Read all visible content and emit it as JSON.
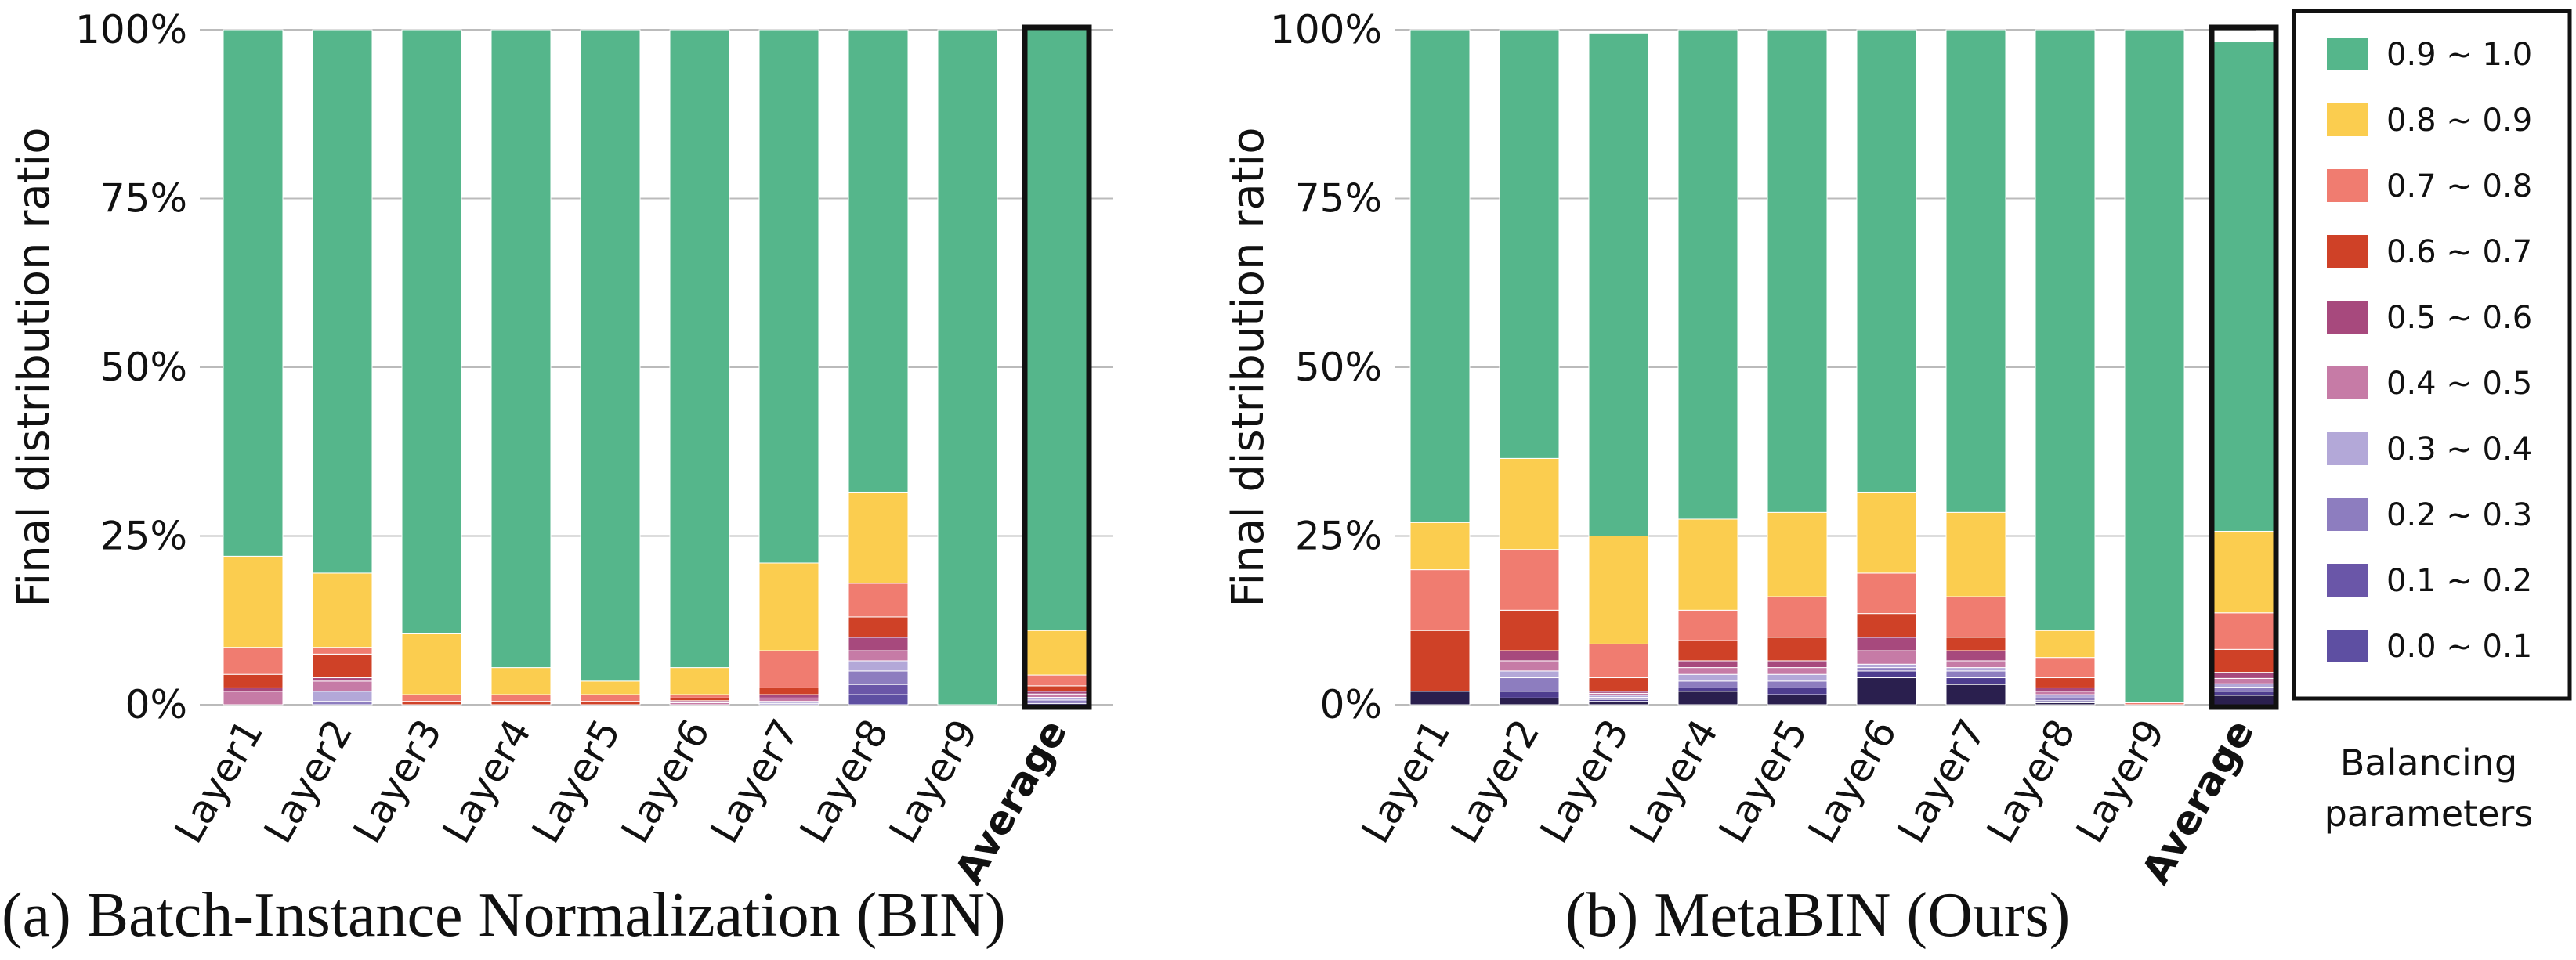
{
  "chart_data": [
    {
      "type": "bar",
      "stacked": true,
      "title": "(a) Batch-Instance Normalization  (BIN)",
      "ylabel": "Final distribution ratio",
      "ylim": [
        0,
        100
      ],
      "yticks": [
        "0%",
        "25%",
        "50%",
        "75%",
        "100%"
      ],
      "grid": true,
      "categories": [
        "Layer1",
        "Layer2",
        "Layer3",
        "Layer4",
        "Layer5",
        "Layer6",
        "Layer7",
        "Layer8",
        "Layer9",
        "Average"
      ],
      "highlighted_category": "Average",
      "series": [
        {
          "name": "0.0 ~ 0.1",
          "color": "#5e4fa2",
          "values": [
            0,
            0,
            0,
            0,
            0,
            0,
            0,
            1.5,
            0,
            0.2
          ]
        },
        {
          "name": "0.1 ~ 0.2",
          "color": "#6a56a8",
          "values": [
            0,
            0,
            0,
            0,
            0,
            0,
            0,
            1.5,
            0,
            0.2
          ]
        },
        {
          "name": "0.2 ~ 0.3",
          "color": "#8d7dbf",
          "values": [
            0,
            0.5,
            0,
            0,
            0,
            0,
            0.2,
            2,
            0,
            0.3
          ]
        },
        {
          "name": "0.3 ~ 0.4",
          "color": "#b3a8d8",
          "values": [
            0,
            1.5,
            0,
            0,
            0,
            0,
            0.3,
            1.5,
            0,
            0.4
          ]
        },
        {
          "name": "0.4 ~ 0.5",
          "color": "#c67ba6",
          "values": [
            2,
            1.5,
            0,
            0,
            0,
            0.3,
            0.5,
            1.5,
            0,
            0.5
          ]
        },
        {
          "name": "0.5 ~ 0.6",
          "color": "#a7497d",
          "values": [
            0.5,
            0.5,
            0,
            0,
            0,
            0.3,
            0.5,
            2,
            0,
            0.4
          ]
        },
        {
          "name": "0.6 ~ 0.7",
          "color": "#cf4127",
          "values": [
            2,
            3.5,
            0.5,
            0.5,
            0.5,
            0.4,
            1,
            3,
            0,
            0.8
          ]
        },
        {
          "name": "0.7 ~ 0.8",
          "color": "#f07c70",
          "values": [
            4,
            1,
            1,
            1,
            1,
            0.5,
            5.5,
            5,
            0,
            1.6
          ]
        },
        {
          "name": "0.8 ~ 0.9",
          "color": "#fbcd4f",
          "values": [
            13.5,
            11,
            9,
            4,
            2,
            4,
            13,
            13.5,
            0,
            6.6
          ]
        },
        {
          "name": "0.9 ~ 1.0",
          "color": "#55b68b",
          "values": [
            78,
            80.5,
            89.5,
            94.5,
            96.5,
            94.5,
            79,
            68.5,
            100,
            89
          ]
        }
      ]
    },
    {
      "type": "bar",
      "stacked": true,
      "title": "(b) MetaBIN (Ours)",
      "ylabel": "Final distribution ratio",
      "ylim": [
        0,
        100
      ],
      "yticks": [
        "0%",
        "25%",
        "50%",
        "75%",
        "100%"
      ],
      "grid": true,
      "categories": [
        "Layer1",
        "Layer2",
        "Layer3",
        "Layer4",
        "Layer5",
        "Layer6",
        "Layer7",
        "Layer8",
        "Layer9",
        "Average"
      ],
      "highlighted_category": "Average",
      "series": [
        {
          "name": "0.0 ~ 0.1",
          "color": "#2a1f4e",
          "values": [
            2,
            1,
            0.5,
            2,
            1.5,
            4,
            3,
            0.3,
            0,
            1.4
          ]
        },
        {
          "name": "0.1 ~ 0.2",
          "color": "#4e3d8f",
          "values": [
            0,
            1,
            0.3,
            0.5,
            1,
            1,
            1,
            0.3,
            0,
            0.6
          ]
        },
        {
          "name": "0.2 ~ 0.3",
          "color": "#8d7dbf",
          "values": [
            0,
            2,
            0.3,
            1,
            1,
            0.5,
            1,
            0.4,
            0,
            0.6
          ]
        },
        {
          "name": "0.3 ~ 0.4",
          "color": "#b3a8d8",
          "values": [
            0,
            1,
            0.3,
            1,
            1,
            0.5,
            0.5,
            0.5,
            0,
            0.5
          ]
        },
        {
          "name": "0.4 ~ 0.5",
          "color": "#c67ba6",
          "values": [
            0,
            1.5,
            0.3,
            1,
            1,
            2,
            1,
            0.5,
            0,
            0.8
          ]
        },
        {
          "name": "0.5 ~ 0.6",
          "color": "#a7497d",
          "values": [
            0,
            1.5,
            0.3,
            1,
            1,
            2,
            1.5,
            0.5,
            0,
            0.9
          ]
        },
        {
          "name": "0.6 ~ 0.7",
          "color": "#cf4127",
          "values": [
            9,
            6,
            2,
            3,
            3.5,
            3.5,
            2,
            1.5,
            0,
            3.4
          ]
        },
        {
          "name": "0.7 ~ 0.8",
          "color": "#f07c70",
          "values": [
            9,
            9,
            5,
            4.5,
            6,
            6,
            6,
            3,
            0.3,
            5.4
          ]
        },
        {
          "name": "0.8 ~ 0.9",
          "color": "#fbcd4f",
          "values": [
            7,
            13.5,
            16,
            13.5,
            12.5,
            12,
            12.5,
            4,
            0,
            12.1
          ]
        },
        {
          "name": "0.9 ~ 1.0",
          "color": "#55b68b",
          "values": [
            73,
            63.5,
            74.5,
            72.5,
            71.5,
            68.5,
            71.5,
            89,
            99.7,
            72.5
          ]
        }
      ]
    }
  ],
  "legend": {
    "title_line1": "Balancing",
    "title_line2": "parameters",
    "placement": "right"
  }
}
